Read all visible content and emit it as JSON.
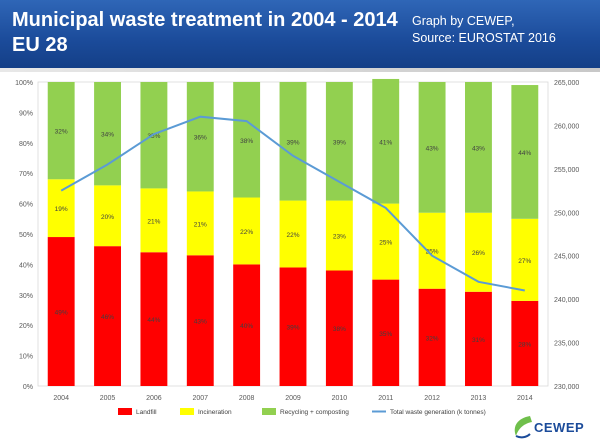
{
  "header": {
    "title": "Municipal waste treatment in 2004 - 2014 EU 28",
    "credit_line1": "Graph by CEWEP,",
    "credit_line2": "Source: EUROSTAT 2016"
  },
  "logo": {
    "text": "CEWEP"
  },
  "colors": {
    "landfill": "#ff0000",
    "incineration": "#ffff00",
    "recycling": "#92d050",
    "total_line": "#5b9bd5",
    "header_blue": "#1b4b9a"
  },
  "chart_data": {
    "type": "bar",
    "stacked": true,
    "percent_stacked": true,
    "categories": [
      "2004",
      "2005",
      "2006",
      "2007",
      "2008",
      "2009",
      "2010",
      "2011",
      "2012",
      "2013",
      "2014"
    ],
    "series": [
      {
        "name": "Landfill",
        "type": "bar",
        "axis": "left",
        "color": "#ff0000",
        "values": [
          49,
          46,
          44,
          43,
          40,
          39,
          38,
          35,
          32,
          31,
          28
        ],
        "labels": [
          "49%",
          "46%",
          "44%",
          "43%",
          "40%",
          "39%",
          "38%",
          "35%",
          "32%",
          "31%",
          "28%"
        ]
      },
      {
        "name": "Incineration",
        "type": "bar",
        "axis": "left",
        "color": "#ffff00",
        "values": [
          19,
          20,
          21,
          21,
          22,
          22,
          23,
          25,
          25,
          26,
          27
        ],
        "labels": [
          "19%",
          "20%",
          "21%",
          "21%",
          "22%",
          "22%",
          "23%",
          "25%",
          "25%",
          "26%",
          "27%"
        ]
      },
      {
        "name": "Recycling + composting",
        "type": "bar",
        "axis": "left",
        "color": "#92d050",
        "values": [
          32,
          34,
          35,
          36,
          38,
          39,
          39,
          41,
          43,
          43,
          44
        ],
        "labels": [
          "32%",
          "34%",
          "35%",
          "36%",
          "38%",
          "39%",
          "39%",
          "41%",
          "43%",
          "43%",
          "44%"
        ]
      },
      {
        "name": "Total waste generation (k tonnes)",
        "type": "line",
        "axis": "right",
        "color": "#5b9bd5",
        "values": [
          252500,
          255500,
          259000,
          261000,
          260500,
          256500,
          253500,
          250500,
          245000,
          242000,
          241000
        ]
      }
    ],
    "left_axis": {
      "min": 0,
      "max": 100,
      "step": 10,
      "suffix": "%",
      "tick_labels": [
        "0%",
        "10%",
        "20%",
        "30%",
        "40%",
        "50%",
        "60%",
        "70%",
        "80%",
        "90%",
        "100%"
      ]
    },
    "right_axis": {
      "min": 230000,
      "max": 265000,
      "step": 5000,
      "tick_labels": [
        "230,000",
        "235,000",
        "240,000",
        "245,000",
        "250,000",
        "255,000",
        "260,000",
        "265,000"
      ]
    },
    "legend_position": "bottom",
    "grid": false
  }
}
